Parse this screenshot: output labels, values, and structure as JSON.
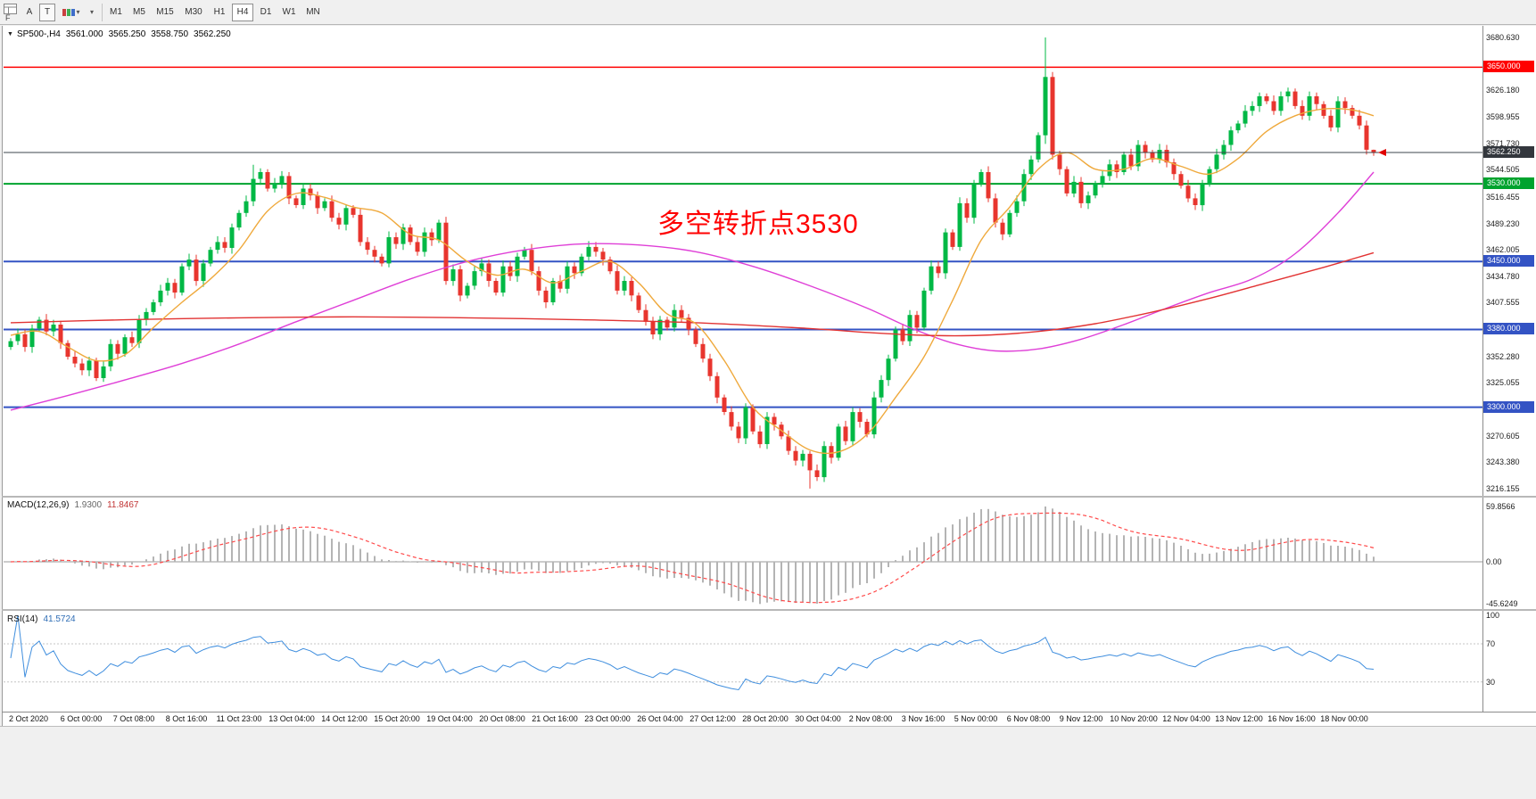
{
  "toolbar": {
    "f_label": "F",
    "tools": {
      "cursor_label": "A",
      "text_label": "T"
    },
    "icons": {
      "collapse": "▼",
      "caret": "▾"
    },
    "timeframes": [
      {
        "label": "M1",
        "active": false
      },
      {
        "label": "M5",
        "active": false
      },
      {
        "label": "M15",
        "active": false
      },
      {
        "label": "M30",
        "active": false
      },
      {
        "label": "H1",
        "active": false
      },
      {
        "label": "H4",
        "active": true
      },
      {
        "label": "D1",
        "active": false
      },
      {
        "label": "W1",
        "active": false
      },
      {
        "label": "MN",
        "active": false
      }
    ]
  },
  "chart": {
    "header": {
      "symbol_period": "SP500-,H4",
      "open": "3561.000",
      "high": "3565.250",
      "low": "3558.750",
      "close": "3562.250"
    },
    "annotation": {
      "text": "多空转折点3530",
      "color": "#ff0000"
    },
    "hlines": [
      {
        "price": 3650.0,
        "label": "3650.000",
        "color": "#ff0000",
        "width": 1.5
      },
      {
        "price": 3530.0,
        "label": "3530.000",
        "color": "#00a32e",
        "width": 2
      },
      {
        "price": 3450.0,
        "label": "3450.000",
        "color": "#3353c4",
        "width": 2
      },
      {
        "price": 3380.0,
        "label": "3380.000",
        "color": "#3353c4",
        "width": 2
      },
      {
        "price": 3300.0,
        "label": "3300.000",
        "color": "#3353c4",
        "width": 2
      }
    ],
    "current_price": {
      "value": 3562.25,
      "label": "3562.250",
      "line_color": "#3e444c",
      "badge_color": "#33373d"
    },
    "y_ticks": [
      "3680.630",
      "3626.180",
      "3598.955",
      "3571.730",
      "3544.505",
      "3516.455",
      "3489.230",
      "3462.005",
      "3434.780",
      "3407.555",
      "3352.280",
      "3325.055",
      "3270.605",
      "3243.380",
      "3216.155"
    ]
  },
  "macd_panel": {
    "title": "MACD(12,26,9)",
    "value_main": "1.9300",
    "value_signal": "11.8467",
    "y_ticks": [
      {
        "v": 59.8566,
        "label": "59.8566"
      },
      {
        "v": 0,
        "label": "0.00"
      },
      {
        "v": -45.6249,
        "label": "-45.6249"
      }
    ]
  },
  "rsi_panel": {
    "title": "RSI(14)",
    "value": "41.5724",
    "y_ticks": [
      {
        "v": 100,
        "label": "100"
      },
      {
        "v": 70,
        "label": "70"
      },
      {
        "v": 30,
        "label": "30"
      }
    ]
  },
  "x_axis": {
    "labels": [
      "2 Oct 2020",
      "6 Oct 00:00",
      "7 Oct 08:00",
      "8 Oct 16:00",
      "11 Oct 23:00",
      "13 Oct 04:00",
      "14 Oct 12:00",
      "15 Oct 20:00",
      "19 Oct 04:00",
      "20 Oct 08:00",
      "21 Oct 16:00",
      "23 Oct 00:00",
      "26 Oct 04:00",
      "27 Oct 12:00",
      "28 Oct 20:00",
      "30 Oct 04:00",
      "2 Nov 08:00",
      "3 Nov 16:00",
      "5 Nov 00:00",
      "6 Nov 08:00",
      "9 Nov 12:00",
      "10 Nov 20:00",
      "12 Nov 04:00",
      "13 Nov 12:00",
      "16 Nov 16:00",
      "18 Nov 00:00"
    ]
  },
  "chart_data": {
    "type": "candlestick",
    "symbol": "SP500-",
    "timeframe": "H4",
    "price_range": {
      "top": 3680.63,
      "bottom": 3216.155
    },
    "first_open": 3362,
    "candles_close": [
      3368,
      3375,
      3362,
      3381,
      3390,
      3378,
      3385,
      3366,
      3352,
      3345,
      3338,
      3348,
      3330,
      3342,
      3365,
      3355,
      3372,
      3366,
      3390,
      3398,
      3408,
      3420,
      3428,
      3418,
      3445,
      3452,
      3430,
      3448,
      3462,
      3470,
      3464,
      3485,
      3500,
      3512,
      3535,
      3542,
      3525,
      3530,
      3538,
      3515,
      3508,
      3525,
      3518,
      3505,
      3512,
      3495,
      3488,
      3505,
      3498,
      3470,
      3462,
      3455,
      3448,
      3475,
      3468,
      3485,
      3470,
      3460,
      3480,
      3472,
      3490,
      3430,
      3442,
      3415,
      3425,
      3440,
      3448,
      3430,
      3418,
      3445,
      3435,
      3455,
      3462,
      3440,
      3420,
      3408,
      3430,
      3422,
      3445,
      3438,
      3455,
      3465,
      3460,
      3452,
      3440,
      3420,
      3430,
      3415,
      3400,
      3388,
      3375,
      3390,
      3382,
      3400,
      3392,
      3380,
      3365,
      3350,
      3332,
      3310,
      3295,
      3280,
      3268,
      3300,
      3275,
      3262,
      3290,
      3282,
      3270,
      3255,
      3245,
      3252,
      3235,
      3228,
      3260,
      3248,
      3280,
      3265,
      3295,
      3285,
      3272,
      3310,
      3328,
      3350,
      3380,
      3368,
      3395,
      3382,
      3420,
      3445,
      3438,
      3480,
      3465,
      3510,
      3495,
      3530,
      3542,
      3515,
      3490,
      3478,
      3500,
      3512,
      3540,
      3555,
      3580,
      3640,
      3560,
      3545,
      3520,
      3532,
      3510,
      3518,
      3530,
      3538,
      3550,
      3542,
      3560,
      3548,
      3570,
      3562,
      3555,
      3565,
      3552,
      3540,
      3528,
      3515,
      3508,
      3530,
      3545,
      3560,
      3570,
      3585,
      3592,
      3605,
      3610,
      3620,
      3615,
      3605,
      3620,
      3625,
      3610,
      3600,
      3620,
      3612,
      3600,
      3588,
      3615,
      3608,
      3600,
      3590,
      3565,
      3562.25
    ],
    "wick_overrides": {
      "34": {
        "high": 3549.5
      },
      "112": {
        "low": 3216.2
      },
      "145": {
        "high": 3680.6,
        "low": 3571
      },
      "191": {
        "high": 3565.25,
        "low": 3558.75
      }
    },
    "ma_fast_orange": [
      [
        0,
        3374
      ],
      [
        4,
        3378
      ],
      [
        8,
        3362
      ],
      [
        12,
        3348
      ],
      [
        16,
        3354
      ],
      [
        20,
        3382
      ],
      [
        24,
        3408
      ],
      [
        28,
        3432
      ],
      [
        32,
        3462
      ],
      [
        36,
        3502
      ],
      [
        40,
        3520
      ],
      [
        44,
        3516
      ],
      [
        48,
        3506
      ],
      [
        52,
        3500
      ],
      [
        56,
        3478
      ],
      [
        60,
        3472
      ],
      [
        64,
        3450
      ],
      [
        68,
        3436
      ],
      [
        72,
        3442
      ],
      [
        76,
        3428
      ],
      [
        80,
        3440
      ],
      [
        84,
        3450
      ],
      [
        88,
        3428
      ],
      [
        92,
        3396
      ],
      [
        96,
        3386
      ],
      [
        100,
        3348
      ],
      [
        104,
        3300
      ],
      [
        108,
        3276
      ],
      [
        112,
        3256
      ],
      [
        116,
        3254
      ],
      [
        120,
        3272
      ],
      [
        124,
        3310
      ],
      [
        128,
        3352
      ],
      [
        132,
        3410
      ],
      [
        136,
        3472
      ],
      [
        140,
        3506
      ],
      [
        144,
        3545
      ],
      [
        148,
        3562
      ],
      [
        152,
        3545
      ],
      [
        156,
        3545
      ],
      [
        160,
        3556
      ],
      [
        164,
        3548
      ],
      [
        168,
        3540
      ],
      [
        172,
        3556
      ],
      [
        176,
        3584
      ],
      [
        180,
        3600
      ],
      [
        184,
        3607
      ],
      [
        188,
        3606
      ],
      [
        191,
        3600
      ]
    ],
    "ma_mid_magenta": [
      [
        0,
        3297
      ],
      [
        8,
        3312
      ],
      [
        16,
        3328
      ],
      [
        24,
        3345
      ],
      [
        32,
        3365
      ],
      [
        40,
        3388
      ],
      [
        48,
        3410
      ],
      [
        56,
        3432
      ],
      [
        64,
        3450
      ],
      [
        72,
        3462
      ],
      [
        80,
        3468
      ],
      [
        88,
        3467
      ],
      [
        96,
        3460
      ],
      [
        104,
        3445
      ],
      [
        112,
        3425
      ],
      [
        120,
        3402
      ],
      [
        126,
        3382
      ],
      [
        132,
        3366
      ],
      [
        138,
        3358
      ],
      [
        144,
        3360
      ],
      [
        150,
        3370
      ],
      [
        156,
        3385
      ],
      [
        162,
        3402
      ],
      [
        168,
        3418
      ],
      [
        174,
        3432
      ],
      [
        180,
        3458
      ],
      [
        186,
        3500
      ],
      [
        191,
        3542
      ]
    ],
    "ma_slow_red": [
      [
        0,
        3387
      ],
      [
        16,
        3390
      ],
      [
        32,
        3392
      ],
      [
        48,
        3393
      ],
      [
        64,
        3392
      ],
      [
        80,
        3390
      ],
      [
        96,
        3387
      ],
      [
        112,
        3381
      ],
      [
        120,
        3377
      ],
      [
        128,
        3374
      ],
      [
        136,
        3374
      ],
      [
        144,
        3378
      ],
      [
        152,
        3386
      ],
      [
        160,
        3398
      ],
      [
        168,
        3412
      ],
      [
        176,
        3428
      ],
      [
        184,
        3444
      ],
      [
        191,
        3459
      ]
    ],
    "indicators": {
      "macd": {
        "params": "12,26,9",
        "value_main": 1.93,
        "value_signal": 11.8467,
        "axis_max": 59.8566,
        "axis_min": -45.6249
      },
      "rsi": {
        "params": "14",
        "value": 41.5724,
        "levels": [
          70,
          30
        ]
      }
    },
    "colors": {
      "up": "#00b845",
      "down": "#e8352e",
      "ma_fast": "#efa93c",
      "ma_mid": "#df3fd7",
      "ma_slow": "#e23333",
      "macd_hist": "#b4b4b4",
      "macd_signal": "#ff4a4a",
      "rsi": "#3f8ede"
    }
  }
}
